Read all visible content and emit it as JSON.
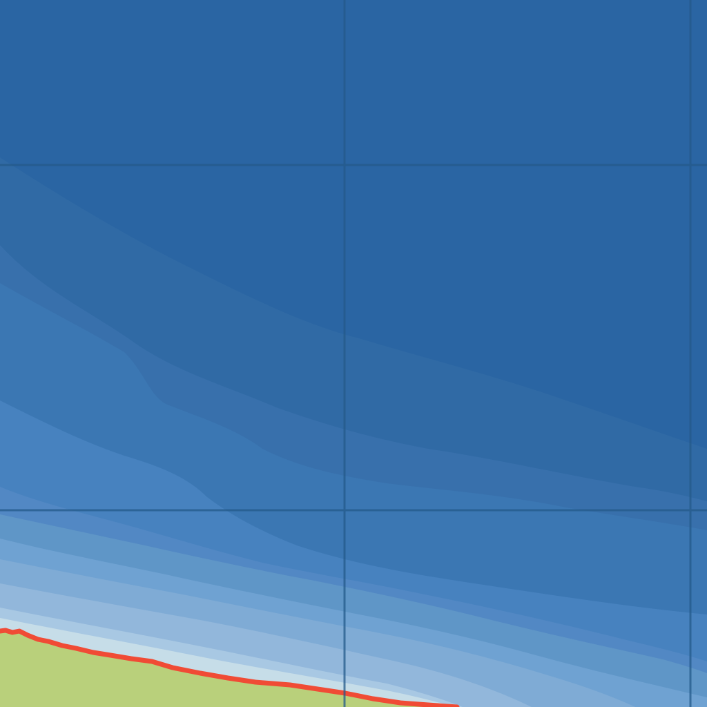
{
  "map": {
    "kind": "depth-contour tile",
    "colors": {
      "deep_water": "#2a65a3",
      "depth_band_1": "#306aa5",
      "depth_band_2": "#3870ac",
      "depth_band_3": "#3b77b3",
      "depth_band_4": "#4782bf",
      "depth_band_5": "#5288c4",
      "depth_band_6": "#5f96c7",
      "depth_band_7": "#6fa2d2",
      "depth_band_8": "#7fabd5",
      "depth_band_9": "#92b7db",
      "depth_band_10": "#a8c8e3",
      "shallow_water": "#c6dde8",
      "land": "#b9d07b",
      "coastline": "#f04b35",
      "grid_line": "#245a8a"
    },
    "layers": [
      "depth-bands",
      "land",
      "coastline",
      "graticule"
    ]
  }
}
